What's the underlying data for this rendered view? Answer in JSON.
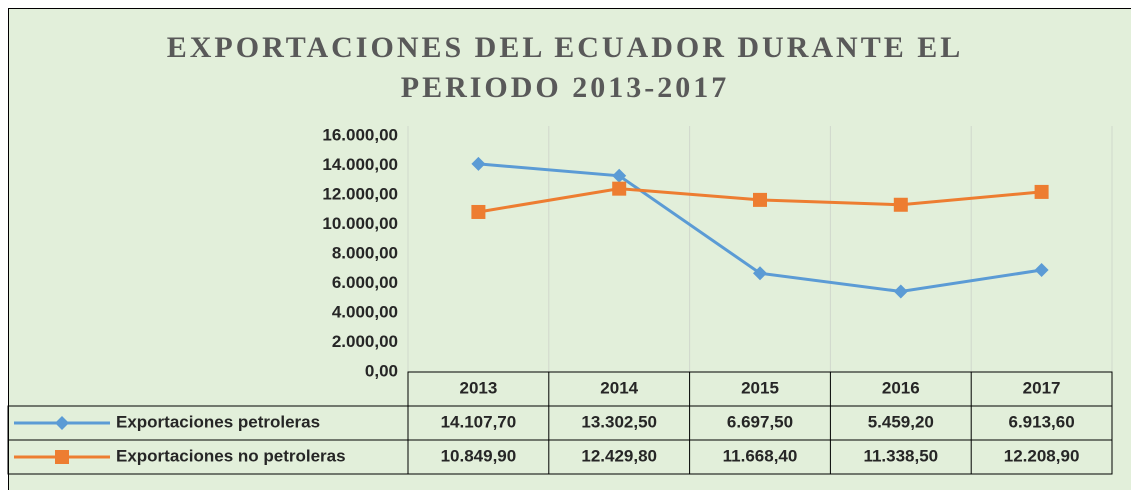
{
  "chart_data": {
    "type": "line",
    "title": "EXPORTACIONES DEL ECUADOR DURANTE EL PERIODO 2013-2017",
    "categories": [
      "2013",
      "2014",
      "2015",
      "2016",
      "2017"
    ],
    "series": [
      {
        "name": "Exportaciones petroleras",
        "color": "#5b9bd5",
        "marker": "diamond",
        "values": [
          14107.7,
          13302.5,
          6697.5,
          5459.2,
          6913.6
        ],
        "value_labels": [
          "14.107,70",
          "13.302,50",
          "6.697,50",
          "5.459,20",
          "6.913,60"
        ]
      },
      {
        "name": "Exportaciones no petroleras",
        "color": "#ed7d31",
        "marker": "square",
        "values": [
          10849.9,
          12429.8,
          11668.4,
          11338.5,
          12208.9
        ],
        "value_labels": [
          "10.849,90",
          "12.429,80",
          "11.668,40",
          "11.338,50",
          "12.208,90"
        ]
      }
    ],
    "ylim": [
      0,
      16000
    ],
    "yticks": [
      {
        "value": 0,
        "label": "0,00"
      },
      {
        "value": 2000,
        "label": "2.000,00"
      },
      {
        "value": 4000,
        "label": "4.000,00"
      },
      {
        "value": 6000,
        "label": "6.000,00"
      },
      {
        "value": 8000,
        "label": "8.000,00"
      },
      {
        "value": 10000,
        "label": "10.000,00"
      },
      {
        "value": 12000,
        "label": "12.000,00"
      },
      {
        "value": 14000,
        "label": "14.000,00"
      },
      {
        "value": 16000,
        "label": "16.000,00"
      }
    ],
    "grid": false,
    "data_table": true
  }
}
